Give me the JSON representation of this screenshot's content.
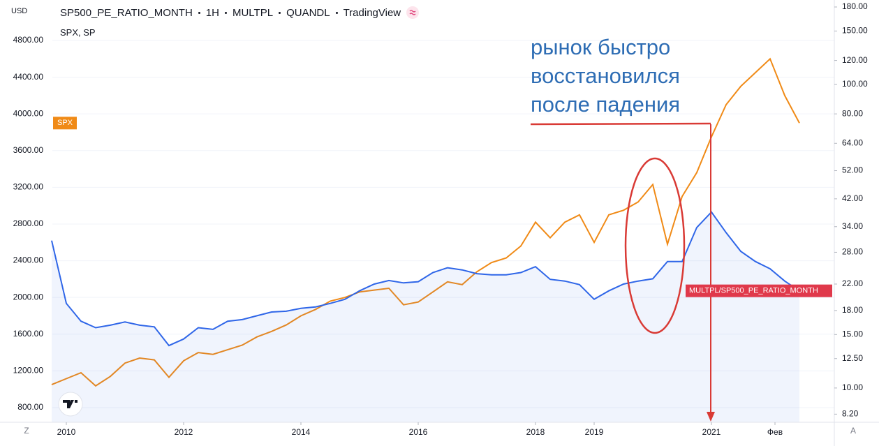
{
  "chart_data": {
    "type": "line",
    "title_parts": [
      "SP500_PE_RATIO_MONTH",
      "1H",
      "MULTPL",
      "QUANDL",
      "TradingView"
    ],
    "overlay_label": "SPX, SP",
    "y_unit": "USD",
    "annotation": [
      "рынок быстро",
      "восстановился",
      "после падения"
    ],
    "buttons": [
      "Z",
      "A"
    ],
    "grid": true,
    "y2scale": "log",
    "x": [
      2009.75,
      2010.0,
      2010.25,
      2010.5,
      2010.75,
      2011.0,
      2011.25,
      2011.5,
      2011.75,
      2012.0,
      2012.25,
      2012.5,
      2012.75,
      2013.0,
      2013.25,
      2013.5,
      2013.75,
      2014.0,
      2014.25,
      2014.5,
      2014.75,
      2015.0,
      2015.25,
      2015.5,
      2015.75,
      2016.0,
      2016.25,
      2016.5,
      2016.75,
      2017.0,
      2017.25,
      2017.5,
      2017.75,
      2018.0,
      2018.25,
      2018.5,
      2018.75,
      2019.0,
      2019.25,
      2019.5,
      2019.75,
      2020.0,
      2020.25,
      2020.5,
      2020.75,
      2021.0,
      2021.25,
      2021.5,
      2021.75,
      2022.0,
      2022.25,
      2022.5
    ],
    "series": [
      {
        "name": "SPX",
        "color": "#f08a16",
        "axis": "y",
        "values": [
          1050,
          1115,
          1180,
          1036,
          1140,
          1285,
          1340,
          1320,
          1130,
          1310,
          1400,
          1380,
          1430,
          1480,
          1570,
          1630,
          1700,
          1800,
          1870,
          1960,
          2000,
          2060,
          2080,
          2100,
          1920,
          1950,
          2060,
          2170,
          2140,
          2280,
          2380,
          2430,
          2560,
          2820,
          2650,
          2820,
          2900,
          2600,
          2900,
          2950,
          3040,
          3230,
          2580,
          3100,
          3360,
          3750,
          4100,
          4300,
          4450,
          4600,
          4200,
          3900
        ]
      },
      {
        "name": "MULTPL/SP500_PE_RATIO_MONTH",
        "color": "#2f66e8",
        "axis": "y2",
        "values": [
          30.6,
          19.0,
          16.6,
          15.8,
          16.1,
          16.5,
          16.1,
          15.9,
          13.8,
          14.5,
          15.8,
          15.6,
          16.6,
          16.8,
          17.3,
          17.8,
          17.9,
          18.3,
          18.5,
          19.0,
          19.6,
          20.9,
          22.0,
          22.6,
          22.2,
          22.4,
          24.0,
          24.9,
          24.5,
          23.8,
          23.6,
          23.6,
          24.0,
          25.1,
          22.8,
          22.5,
          21.9,
          19.6,
          20.9,
          22.0,
          22.5,
          22.9,
          26.1,
          26.1,
          33.8,
          38.0,
          32.5,
          28.2,
          26.1,
          24.7,
          22.5,
          20.9
        ]
      }
    ],
    "xlim": [
      2009.762,
      2023.095
    ],
    "xticks": [
      2010,
      2012,
      2014,
      2016,
      2018,
      2019,
      2021,
      {
        "value": 2022.083,
        "label": "Фев"
      }
    ],
    "ylim": [
      640,
      5241
    ],
    "yticks": [
      {
        "value": 800,
        "label": "800.00"
      },
      {
        "value": 1200,
        "label": "1200.00"
      },
      {
        "value": 1600,
        "label": "1600.00"
      },
      {
        "value": 2000,
        "label": "2000.00"
      },
      {
        "value": 2400,
        "label": "2400.00"
      },
      {
        "value": 2800,
        "label": "2800.00"
      },
      {
        "value": 3200,
        "label": "3200.00"
      },
      {
        "value": 3600,
        "label": "3600.00"
      },
      {
        "value": 4000,
        "label": "4000.00"
      },
      {
        "value": 4400,
        "label": "4400.00"
      },
      {
        "value": 4800,
        "label": "4800.00"
      }
    ],
    "y2lim": [
      7.71,
      189.8
    ],
    "y2ticks": [
      {
        "value": 8.2,
        "label": "8.20"
      },
      {
        "value": 10,
        "label": "10.00"
      },
      {
        "value": 12.5,
        "label": "12.50"
      },
      {
        "value": 15,
        "label": "15.00"
      },
      {
        "value": 18,
        "label": "18.00"
      },
      {
        "value": 22,
        "label": "22.00"
      },
      {
        "value": 28,
        "label": "28.00"
      },
      {
        "value": 34,
        "label": "34.00"
      },
      {
        "value": 42,
        "label": "42.00"
      },
      {
        "value": 52,
        "label": "52.00"
      },
      {
        "value": 64,
        "label": "64.00"
      },
      {
        "value": 80,
        "label": "80.00"
      },
      {
        "value": 100,
        "label": "100.00"
      },
      {
        "value": 120,
        "label": "120.00"
      },
      {
        "value": 150,
        "label": "150.00"
      },
      {
        "value": 180,
        "label": "180.00"
      }
    ]
  }
}
